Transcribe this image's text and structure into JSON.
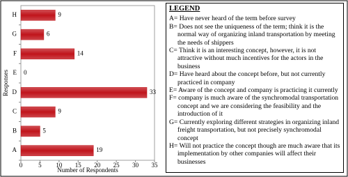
{
  "chart_data": {
    "type": "barh",
    "x_label": "Number of Respondents",
    "y_label": "Responses",
    "categories": [
      "A",
      "B",
      "C",
      "D",
      "E",
      "F",
      "G",
      "H"
    ],
    "values": [
      19,
      5,
      9,
      33,
      0,
      14,
      6,
      9
    ],
    "color": "#c0141b",
    "xlim": [
      0,
      35
    ],
    "xticks": [
      0,
      5,
      10,
      15,
      20,
      25,
      30,
      35
    ],
    "grid": false
  },
  "legend": {
    "title": "LEGEND",
    "items": [
      "A= Have never heard of the term before survey",
      "B= Does not see the uniqueness of the term; think it is the normal way of organizing inland transportation by meeting the needs of shippers",
      "C= Think it is an interesting concept, however, it is not attractive without much incentives for the actors in the business",
      "D= Have heard about the concept before, but not currently practiced in company",
      "E= Aware of the concept and company is practicing it currently",
      "F= company is much aware of the synchromodal transportation concept and we are considering the feasibility and the introduction of it",
      "G= Currently exploring different strategies in organizing inland freight transportation, but not precisely synchromodal concept",
      "H= Will not practice the concept though are much aware that its implementation by other companies will affect their businesses"
    ]
  }
}
